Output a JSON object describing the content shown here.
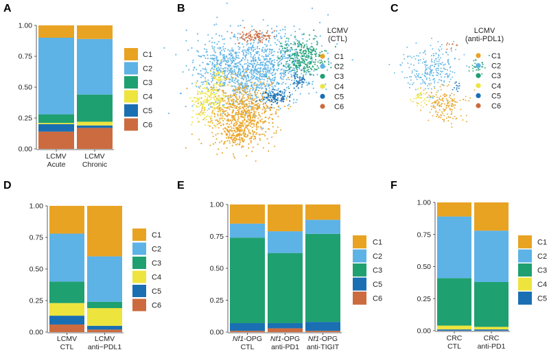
{
  "colors": {
    "C1": "#E8A323",
    "C2": "#5DB2E6",
    "C3": "#1FA070",
    "C4": "#EDE43E",
    "C5": "#1A6FB3",
    "C6": "#CC6B3F"
  },
  "chart_data": [
    {
      "panel": "A",
      "type": "bar",
      "stacked": true,
      "categories": [
        [
          "LCMV",
          "Acute"
        ],
        [
          "LCMV",
          "Chronic"
        ]
      ],
      "ylim": [
        0,
        1
      ],
      "yticks": [
        "0.00",
        "0.25",
        "0.50",
        "0.75",
        "1.00"
      ],
      "series": [
        {
          "name": "C6",
          "values": [
            0.14,
            0.17
          ]
        },
        {
          "name": "C5",
          "values": [
            0.06,
            0.02
          ]
        },
        {
          "name": "C4",
          "values": [
            0.01,
            0.03
          ]
        },
        {
          "name": "C3",
          "values": [
            0.07,
            0.22
          ]
        },
        {
          "name": "C2",
          "values": [
            0.62,
            0.45
          ]
        },
        {
          "name": "C1",
          "values": [
            0.1,
            0.11
          ]
        }
      ],
      "legend": [
        "C1",
        "C2",
        "C3",
        "C4",
        "C5",
        "C6"
      ]
    },
    {
      "panel": "B",
      "type": "scatter",
      "legend_title": [
        "LCMV",
        "(CTL)"
      ],
      "legend": [
        "C1",
        "C2",
        "C3",
        "C4",
        "C5",
        "C6"
      ]
    },
    {
      "panel": "C",
      "type": "scatter",
      "legend_title": [
        "LCMV",
        "(anti-PDL1)"
      ],
      "legend": [
        "C1",
        "C2",
        "C3",
        "C4",
        "C5",
        "C6"
      ]
    },
    {
      "panel": "D",
      "type": "bar",
      "stacked": true,
      "categories": [
        [
          "LCMV",
          "CTL"
        ],
        [
          "LCMV",
          "anti−PDL1"
        ]
      ],
      "ylim": [
        0,
        1
      ],
      "yticks": [
        "0.00",
        "0.25",
        "0.50",
        "0.75",
        "1.00"
      ],
      "series": [
        {
          "name": "C6",
          "values": [
            0.06,
            0.02
          ]
        },
        {
          "name": "C5",
          "values": [
            0.07,
            0.03
          ]
        },
        {
          "name": "C4",
          "values": [
            0.1,
            0.14
          ]
        },
        {
          "name": "C3",
          "values": [
            0.17,
            0.05
          ]
        },
        {
          "name": "C2",
          "values": [
            0.38,
            0.36
          ]
        },
        {
          "name": "C1",
          "values": [
            0.22,
            0.4
          ]
        }
      ],
      "legend": [
        "C1",
        "C2",
        "C3",
        "C4",
        "C5",
        "C6"
      ]
    },
    {
      "panel": "E",
      "type": "bar",
      "stacked": true,
      "categories": [
        [
          "Nf1-OPG",
          "CTL"
        ],
        [
          "Nf1-OPG",
          "anti-PD1"
        ],
        [
          "Nf1-OPG",
          "anti-TIGIT"
        ]
      ],
      "category_italic_prefix": "Nf1",
      "ylim": [
        0,
        1
      ],
      "yticks": [
        "0.00",
        "0.25",
        "0.50",
        "0.75",
        "1.00"
      ],
      "series": [
        {
          "name": "C6",
          "values": [
            0.01,
            0.03,
            0.01
          ]
        },
        {
          "name": "C5",
          "values": [
            0.06,
            0.04,
            0.07
          ]
        },
        {
          "name": "C3",
          "values": [
            0.67,
            0.55,
            0.69
          ]
        },
        {
          "name": "C2",
          "values": [
            0.11,
            0.17,
            0.11
          ]
        },
        {
          "name": "C1",
          "values": [
            0.15,
            0.21,
            0.12
          ]
        }
      ],
      "legend": [
        "C1",
        "C2",
        "C3",
        "C5",
        "C6"
      ]
    },
    {
      "panel": "F",
      "type": "bar",
      "stacked": true,
      "categories": [
        [
          "CRC",
          "CTL"
        ],
        [
          "CRC",
          "anti-PD1"
        ]
      ],
      "ylim": [
        0,
        1
      ],
      "yticks": [
        "0.00",
        "0.25",
        "0.50",
        "0.75",
        "1.00"
      ],
      "series": [
        {
          "name": "C5",
          "values": [
            0.01,
            0.01
          ]
        },
        {
          "name": "C4",
          "values": [
            0.03,
            0.02
          ]
        },
        {
          "name": "C3",
          "values": [
            0.37,
            0.35
          ]
        },
        {
          "name": "C2",
          "values": [
            0.48,
            0.4
          ]
        },
        {
          "name": "C1",
          "values": [
            0.11,
            0.22
          ]
        }
      ],
      "legend": [
        "C1",
        "C2",
        "C3",
        "C4",
        "C5"
      ]
    }
  ]
}
